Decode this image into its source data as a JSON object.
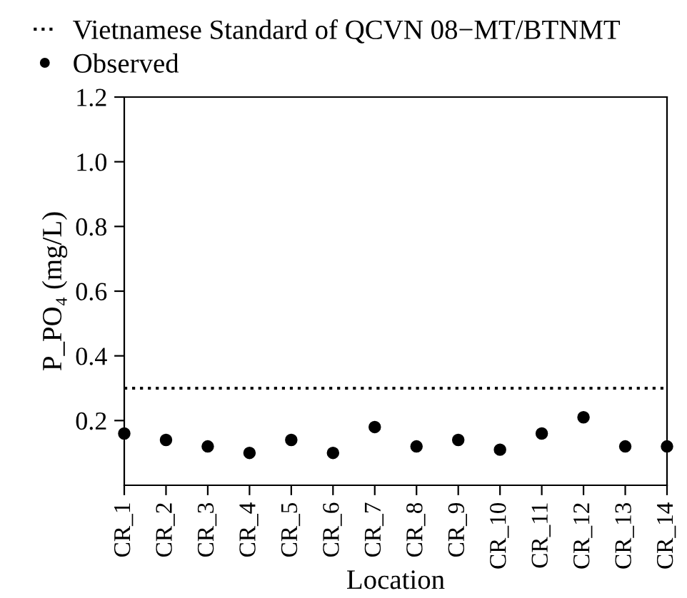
{
  "chart_data": {
    "type": "scatter",
    "xlabel": "Location",
    "ylabel": "P_PO₄ (mg/L)",
    "categories": [
      "CR_1",
      "CR_2",
      "CR_3",
      "CR_4",
      "CR_5",
      "CR_6",
      "CR_7",
      "CR_8",
      "CR_9",
      "CR_10",
      "CR_11",
      "CR_12",
      "CR_13",
      "CR_14"
    ],
    "series": [
      {
        "name": "Observed",
        "color": "#000000",
        "values": [
          0.16,
          0.14,
          0.12,
          0.1,
          0.14,
          0.1,
          0.18,
          0.12,
          0.14,
          0.11,
          0.16,
          0.21,
          0.12,
          0.12
        ]
      }
    ],
    "ref_lines": [
      {
        "axis": "y",
        "value": 0.3,
        "label": "Vietnamese Standard of QCVN 08−MT/BTNMT",
        "color": "#000000",
        "line_style": "dotted"
      }
    ],
    "ylim": [
      0,
      1.2
    ],
    "yticks": [
      0.2,
      0.4,
      0.6,
      0.8,
      {
        "value": 1.0,
        "label": "1.0"
      },
      1.2
    ],
    "marker": "circle",
    "legend": "top left",
    "grid": false
  }
}
